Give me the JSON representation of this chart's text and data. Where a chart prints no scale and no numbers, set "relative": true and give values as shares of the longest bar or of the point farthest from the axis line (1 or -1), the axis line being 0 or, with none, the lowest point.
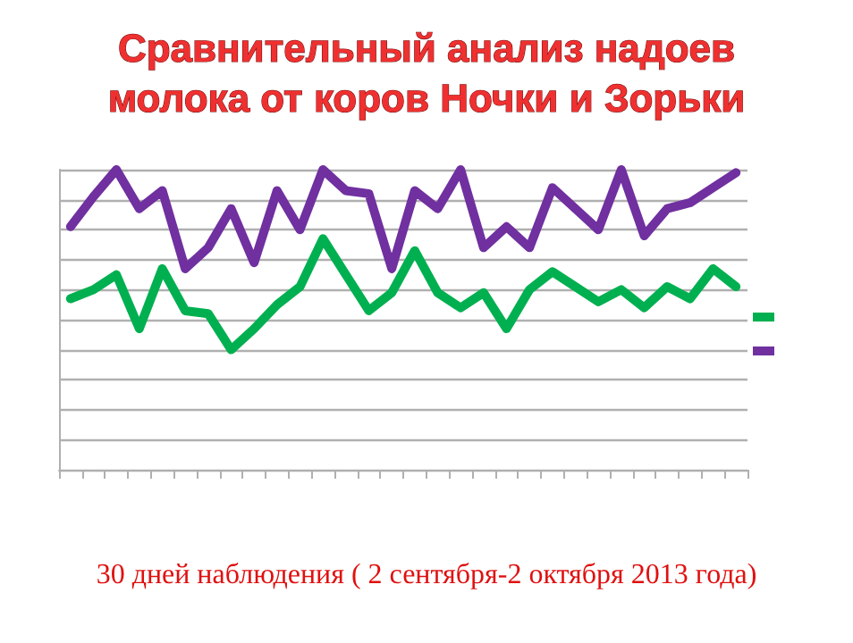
{
  "chart_data": {
    "type": "line",
    "title": "Сравнительный анализ надоев\nмолока от коров Ночки и Зорьки",
    "annotations": [
      "30 дней наблюдения ( 2 сентября-2 октября 2013 года)"
    ],
    "relative": true,
    "grid": "y",
    "marker": "none",
    "line_style": "solid",
    "categories": [
      null,
      null,
      null,
      null,
      null,
      null,
      null,
      null,
      null,
      null,
      null,
      null,
      null,
      null,
      null,
      null,
      null,
      null,
      null,
      null,
      null,
      null,
      null,
      null,
      null,
      null,
      null,
      null,
      null,
      null
    ],
    "series": [
      {
        "color": "#00b050",
        "values": [
          0.57,
          0.6,
          0.65,
          0.47,
          0.67,
          0.53,
          0.52,
          0.4,
          0.47,
          0.55,
          0.61,
          0.77,
          0.65,
          0.53,
          0.59,
          0.73,
          0.59,
          0.54,
          0.59,
          0.47,
          0.6,
          0.66,
          0.61,
          0.56,
          0.6,
          0.54,
          0.61,
          0.57,
          0.67,
          0.61
        ]
      },
      {
        "color": "#7030a0",
        "values": [
          0.81,
          0.91,
          1,
          0.87,
          0.93,
          0.67,
          0.74,
          0.87,
          0.69,
          0.93,
          0.8,
          1,
          0.93,
          0.92,
          0.67,
          0.93,
          0.87,
          1,
          0.74,
          0.81,
          0.74,
          0.94,
          0.87,
          0.8,
          1,
          0.78,
          0.87,
          0.89,
          0.94,
          0.99
        ]
      }
    ]
  }
}
